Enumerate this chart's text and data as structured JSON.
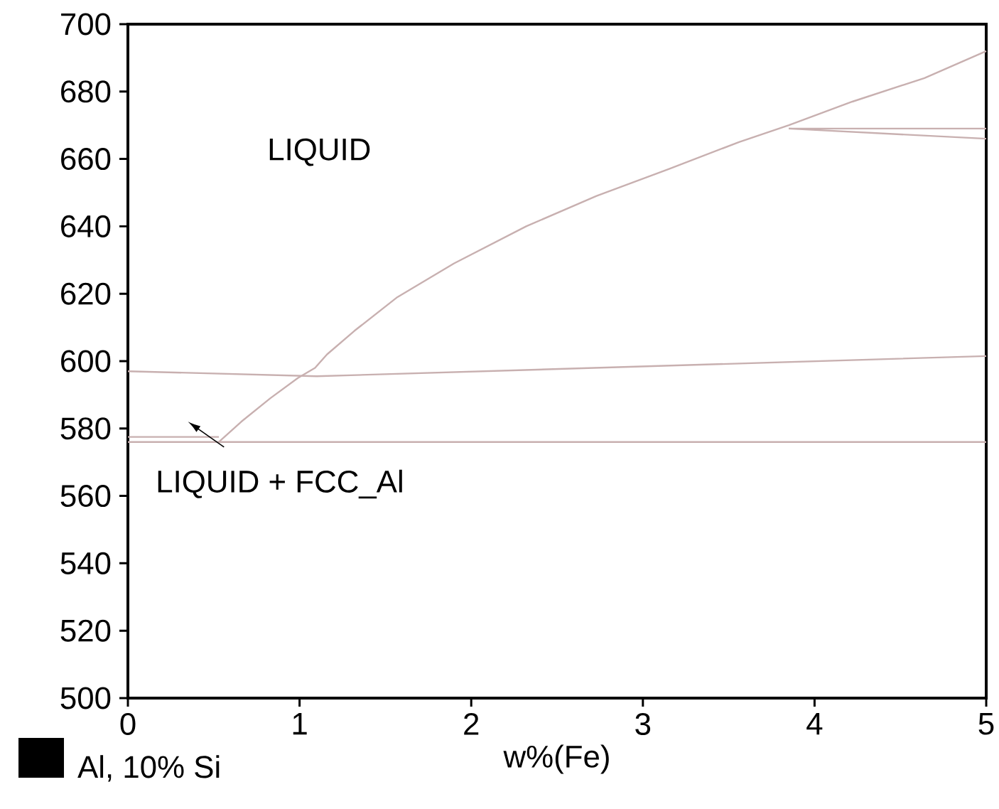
{
  "chart_data": {
    "type": "line",
    "xlabel": "w%(Fe)",
    "xlim": [
      0,
      5
    ],
    "ylim": [
      500,
      700
    ],
    "xticks": [
      0,
      1,
      2,
      3,
      4,
      5
    ],
    "yticks": [
      500,
      520,
      540,
      560,
      580,
      600,
      620,
      640,
      660,
      680,
      700
    ],
    "series": [
      {
        "color": "#c8b0b0",
        "x": [
          0.53,
          0.66,
          0.83,
          0.99,
          1.09,
          1.16,
          1.32,
          1.57,
          1.9,
          2.32,
          2.73,
          3.15,
          3.56,
          3.85,
          4.22,
          4.64,
          5.0
        ],
        "values": [
          576,
          582,
          589,
          595,
          598,
          602,
          609,
          619,
          629,
          640,
          649,
          657,
          665,
          670,
          677,
          684,
          692
        ]
      },
      {
        "color": "#c8b0b0",
        "x": [
          0,
          1.1,
          5
        ],
        "values": [
          597,
          595.5,
          601.5
        ]
      },
      {
        "color": "#c8b0b0",
        "x": [
          0,
          5
        ],
        "values": [
          576,
          576
        ]
      },
      {
        "color": "#c8b0b0",
        "x": [
          0,
          0.53
        ],
        "values": [
          577.5,
          577.5
        ]
      },
      {
        "color": "#c8b0b0",
        "x": [
          3.85,
          5
        ],
        "values": [
          669,
          669
        ]
      },
      {
        "color": "#c8b0b0",
        "x": [
          3.85,
          5
        ],
        "values": [
          669,
          666
        ]
      }
    ],
    "annotations": [
      "LIQUID",
      "LIQUID + FCC_Al",
      "Al, 10% Si"
    ],
    "grid": false,
    "marker": "none",
    "line_style": "solid"
  }
}
